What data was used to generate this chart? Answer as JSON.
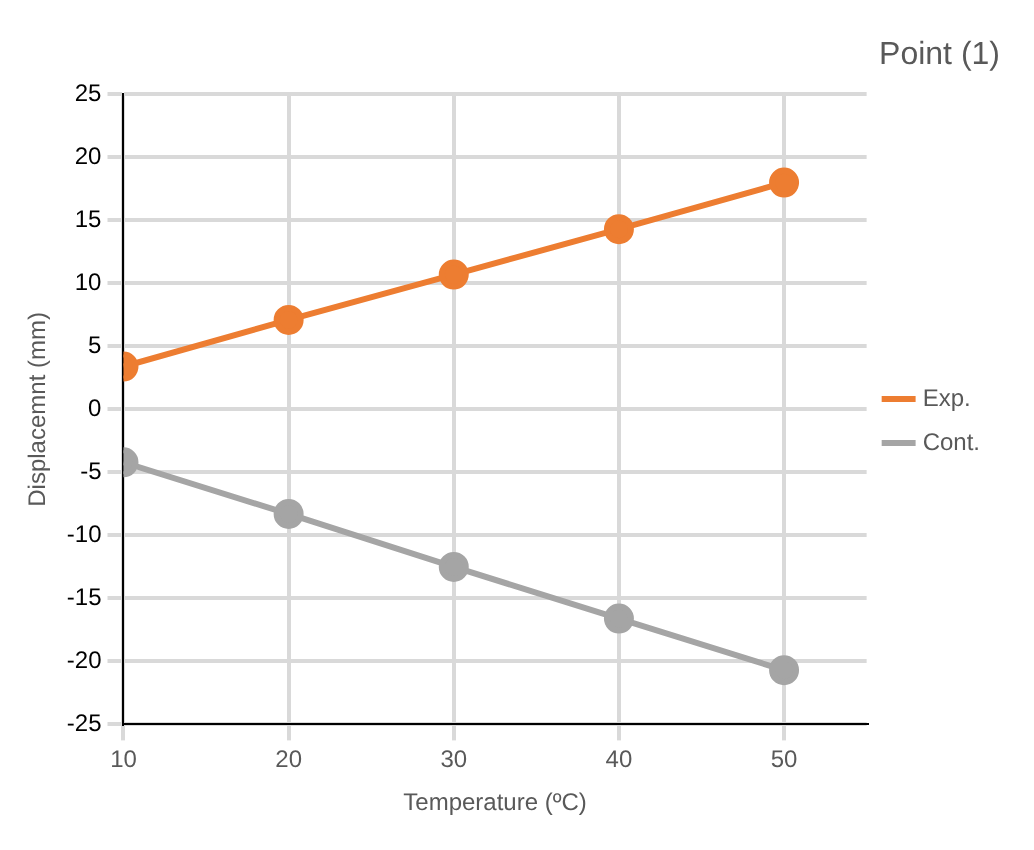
{
  "chart_data": {
    "type": "line",
    "title": "Point (1)",
    "xlabel": "Temperature (ºC)",
    "ylabel": "Displacemnt (mm)",
    "x": [
      10,
      20,
      30,
      40,
      50
    ],
    "series": [
      {
        "name": "Exp.",
        "color": "#ed7d31",
        "values": [
          3.4,
          7.1,
          10.7,
          14.3,
          18.0
        ]
      },
      {
        "name": "Cont.",
        "color": "#a5a5a5",
        "values": [
          -4.2,
          -8.3,
          -12.5,
          -16.6,
          -20.7
        ]
      }
    ],
    "xlim": [
      10,
      55
    ],
    "xticks": [
      10,
      20,
      30,
      40,
      50
    ],
    "ylim": [
      -25,
      25
    ],
    "yticks": [
      -25,
      -20,
      -15,
      -10,
      -5,
      0,
      5,
      10,
      15,
      20,
      25
    ],
    "grid": true,
    "legend": "right",
    "marker": "circle",
    "line_style": "solid"
  }
}
